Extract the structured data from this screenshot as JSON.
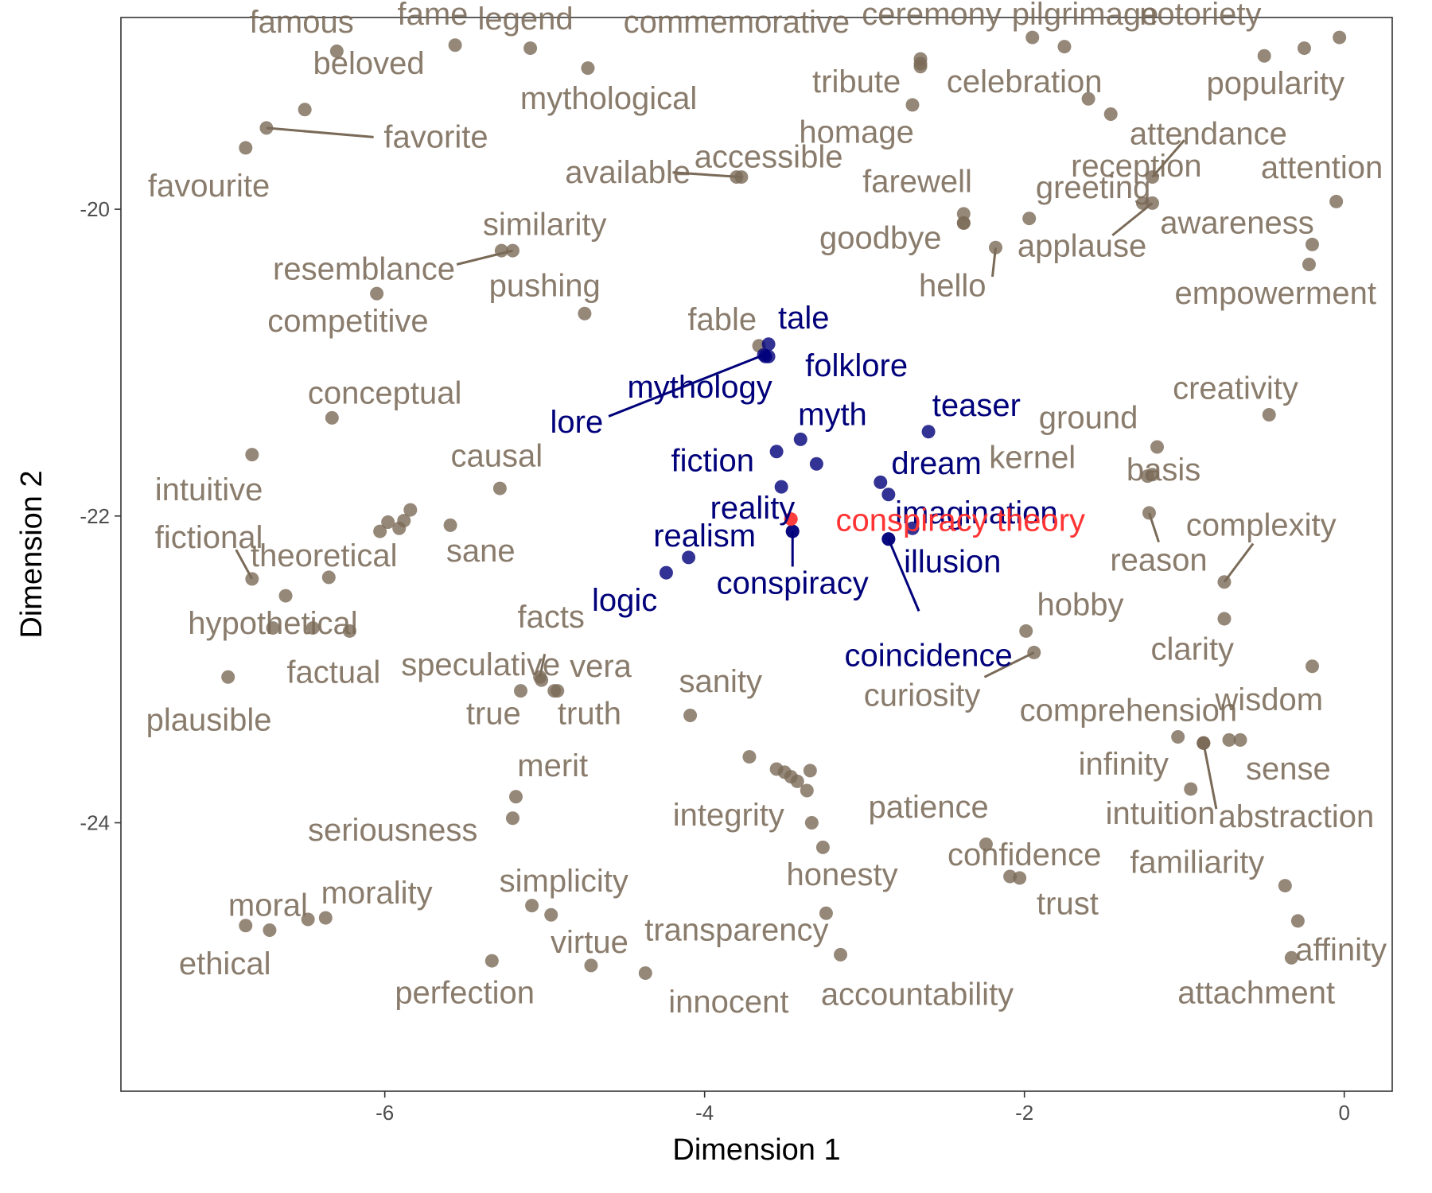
{
  "chart_data": {
    "type": "scatter",
    "title": "",
    "xlabel": "Dimension 1",
    "ylabel": "Dimension 2",
    "xlim": [
      -7.65,
      0.3
    ],
    "ylim": [
      -25.75,
      -18.75
    ],
    "x_ticks": [
      -6,
      -4,
      -2,
      0
    ],
    "y_ticks": [
      -20,
      -22,
      -24
    ],
    "x_tick_labels": [
      "-6",
      "-4",
      "-2",
      "0"
    ],
    "y_tick_labels": [
      "-20",
      "-22",
      "-24"
    ],
    "grid": false,
    "legend": "none",
    "colors": {
      "background": "#7a6a58",
      "related": "#00007a",
      "target": "#ff3333"
    },
    "groups": [
      {
        "name": "background",
        "color": "#7a6a58"
      },
      {
        "name": "related",
        "color": "#00007a"
      },
      {
        "name": "target",
        "color": "#ff3333"
      }
    ],
    "points": [
      {
        "label": "famous",
        "x": -6.3,
        "y": -18.97,
        "group": "background",
        "lx": -6.52,
        "ly": -18.78
      },
      {
        "label": "fame",
        "x": -5.56,
        "y": -18.93,
        "group": "background",
        "lx": -5.7,
        "ly": -18.73
      },
      {
        "label": "legend",
        "x": -5.09,
        "y": -18.95,
        "group": "background",
        "lx": -5.12,
        "ly": -18.76
      },
      {
        "label": "commemorative",
        "x": -2.65,
        "y": -19.05,
        "group": "background",
        "lx": -3.8,
        "ly": -18.78
      },
      {
        "label": "ceremony",
        "x": -2.65,
        "y": -19.02,
        "group": "background",
        "lx": -2.58,
        "ly": -18.73
      },
      {
        "label": "pilgrimage",
        "x": -1.95,
        "y": -18.88,
        "group": "background",
        "lx": -1.62,
        "ly": -18.73
      },
      {
        "label": "notoriety",
        "x": -1.75,
        "y": -18.94,
        "group": "background",
        "lx": -0.9,
        "ly": -18.73
      },
      {
        "label": "",
        "x": -0.25,
        "y": -18.95,
        "group": "background"
      },
      {
        "label": "",
        "x": -0.03,
        "y": -18.88,
        "group": "background"
      },
      {
        "label": "mythological",
        "x": -4.73,
        "y": -19.08,
        "group": "background",
        "lx": -4.6,
        "ly": -19.28
      },
      {
        "label": "tribute",
        "x": -2.65,
        "y": -19.07,
        "group": "background",
        "lx": -3.05,
        "ly": -19.17
      },
      {
        "label": "celebration",
        "x": -1.6,
        "y": -19.28,
        "group": "background",
        "lx": -2.0,
        "ly": -19.17
      },
      {
        "label": "popularity",
        "x": -0.5,
        "y": -19.0,
        "group": "background",
        "lx": -0.43,
        "ly": -19.18
      },
      {
        "label": "beloved",
        "x": -6.5,
        "y": -19.35,
        "group": "background",
        "lx": -6.1,
        "ly": -19.05
      },
      {
        "label": "favorite",
        "x": -6.74,
        "y": -19.47,
        "group": "background",
        "lx": -5.68,
        "ly": -19.53,
        "lineTo": [
          -6.07,
          -19.53
        ]
      },
      {
        "label": "favourite",
        "x": -6.87,
        "y": -19.6,
        "group": "background",
        "lx": -7.1,
        "ly": -19.85
      },
      {
        "label": "homage",
        "x": -2.7,
        "y": -19.32,
        "group": "background",
        "lx": -3.05,
        "ly": -19.5
      },
      {
        "label": "",
        "x": -1.46,
        "y": -19.38,
        "group": "background"
      },
      {
        "label": "attendance",
        "x": -1.2,
        "y": -19.79,
        "group": "background",
        "lx": -0.85,
        "ly": -19.51,
        "lineTo": [
          -1.0,
          -19.55
        ]
      },
      {
        "label": "reception",
        "x": -1.26,
        "y": -19.96,
        "group": "background",
        "lx": -1.3,
        "ly": -19.72
      },
      {
        "label": "accessible",
        "x": -3.8,
        "y": -19.79,
        "group": "background",
        "lx": -3.6,
        "ly": -19.66
      },
      {
        "label": "available",
        "x": -3.77,
        "y": -19.79,
        "group": "background",
        "lx": -4.48,
        "ly": -19.76,
        "lineTo": [
          -4.2,
          -19.76
        ]
      },
      {
        "label": "attention",
        "x": -0.05,
        "y": -19.95,
        "group": "background",
        "lx": -0.14,
        "ly": -19.73
      },
      {
        "label": "farewell",
        "x": -2.38,
        "y": -20.03,
        "group": "background",
        "lx": -2.67,
        "ly": -19.82
      },
      {
        "label": "",
        "x": -2.38,
        "y": -20.09,
        "group": "background"
      },
      {
        "label": "greeting",
        "x": -1.97,
        "y": -20.06,
        "group": "background",
        "lx": -1.57,
        "ly": -19.86
      },
      {
        "label": "similarity",
        "x": -5.27,
        "y": -20.27,
        "group": "background",
        "lx": -5.0,
        "ly": -20.1
      },
      {
        "label": "resemblance",
        "x": -5.2,
        "y": -20.27,
        "group": "background",
        "lx": -6.13,
        "ly": -20.39,
        "lineTo": [
          -5.55,
          -20.36
        ]
      },
      {
        "label": "awareness",
        "x": -0.2,
        "y": -20.23,
        "group": "background",
        "lx": -0.67,
        "ly": -20.09
      },
      {
        "label": "applause",
        "x": -1.2,
        "y": -19.96,
        "group": "background",
        "lx": -1.64,
        "ly": -20.24,
        "lineTo": [
          -1.45,
          -20.17
        ]
      },
      {
        "label": "goodbye",
        "x": -2.38,
        "y": -20.09,
        "group": "background",
        "lx": -2.9,
        "ly": -20.19
      },
      {
        "label": "hello",
        "x": -2.18,
        "y": -20.25,
        "group": "background",
        "lx": -2.45,
        "ly": -20.5,
        "lineTo": [
          -2.2,
          -20.44
        ]
      },
      {
        "label": "empowerment",
        "x": -0.22,
        "y": -20.36,
        "group": "background",
        "lx": -0.43,
        "ly": -20.55
      },
      {
        "label": "competitive",
        "x": -6.05,
        "y": -20.55,
        "group": "background",
        "lx": -6.23,
        "ly": -20.73
      },
      {
        "label": "pushing",
        "x": -4.75,
        "y": -20.68,
        "group": "background",
        "lx": -5.0,
        "ly": -20.5
      },
      {
        "label": "fable",
        "x": -3.66,
        "y": -20.89,
        "group": "background",
        "lx": -3.89,
        "ly": -20.72
      },
      {
        "label": "conceptual",
        "x": -6.33,
        "y": -21.36,
        "group": "background",
        "lx": -6.0,
        "ly": -21.2
      },
      {
        "label": "creativity",
        "x": -0.47,
        "y": -21.34,
        "group": "background",
        "lx": -0.68,
        "ly": -21.17
      },
      {
        "label": "ground",
        "x": -1.17,
        "y": -21.55,
        "group": "background",
        "lx": -1.6,
        "ly": -21.36
      },
      {
        "label": "intuitive",
        "x": -6.83,
        "y": -21.6,
        "group": "background",
        "lx": -7.1,
        "ly": -21.83
      },
      {
        "label": "causal",
        "x": -5.28,
        "y": -21.82,
        "group": "background",
        "lx": -5.3,
        "ly": -21.61
      },
      {
        "label": "kernel",
        "x": -1.23,
        "y": -21.74,
        "group": "background",
        "lx": -1.95,
        "ly": -21.62
      },
      {
        "label": "basis",
        "x": -1.2,
        "y": -21.73,
        "group": "background",
        "lx": -1.13,
        "ly": -21.7
      },
      {
        "label": "fictional",
        "x": -6.83,
        "y": -22.41,
        "group": "background",
        "lx": -7.1,
        "ly": -22.14,
        "lineTo": [
          -6.93,
          -22.22
        ]
      },
      {
        "label": "",
        "x": -6.03,
        "y": -22.1,
        "group": "background"
      },
      {
        "label": "",
        "x": -5.98,
        "y": -22.04,
        "group": "background"
      },
      {
        "label": "",
        "x": -5.91,
        "y": -22.08,
        "group": "background"
      },
      {
        "label": "",
        "x": -5.88,
        "y": -22.03,
        "group": "background"
      },
      {
        "label": "",
        "x": -5.84,
        "y": -21.96,
        "group": "background"
      },
      {
        "label": "theoretical",
        "x": -6.35,
        "y": -22.4,
        "group": "background",
        "lx": -6.38,
        "ly": -22.26
      },
      {
        "label": "sane",
        "x": -5.59,
        "y": -22.06,
        "group": "background",
        "lx": -5.4,
        "ly": -22.23
      },
      {
        "label": "complexity",
        "x": -0.75,
        "y": -22.43,
        "group": "background",
        "lx": -0.52,
        "ly": -22.06,
        "lineTo": [
          -0.57,
          -22.18
        ]
      },
      {
        "label": "reason",
        "x": -1.22,
        "y": -21.98,
        "group": "background",
        "lx": -1.16,
        "ly": -22.29,
        "lineTo": [
          -1.16,
          -22.17
        ]
      },
      {
        "label": "",
        "x": -6.62,
        "y": -22.52,
        "group": "background"
      },
      {
        "label": "hypothetical",
        "x": -6.45,
        "y": -22.73,
        "group": "background",
        "lx": -6.7,
        "ly": -22.7
      },
      {
        "label": "",
        "x": -6.22,
        "y": -22.75,
        "group": "background"
      },
      {
        "label": "facts",
        "x": -5.03,
        "y": -23.05,
        "group": "background",
        "lx": -4.96,
        "ly": -22.66,
        "lineTo": [
          -5.0,
          -22.9
        ]
      },
      {
        "label": "hobby",
        "x": -1.99,
        "y": -22.75,
        "group": "background",
        "lx": -1.65,
        "ly": -22.58
      },
      {
        "label": "clarity",
        "x": -0.75,
        "y": -22.67,
        "group": "background",
        "lx": -0.95,
        "ly": -22.87
      },
      {
        "label": "speculative",
        "x": -5.02,
        "y": -23.07,
        "group": "background",
        "lx": -5.4,
        "ly": -22.97
      },
      {
        "label": "factual",
        "x": -6.7,
        "y": -22.73,
        "group": "background",
        "lx": -6.32,
        "ly": -23.02
      },
      {
        "label": "vera",
        "x": -4.92,
        "y": -23.14,
        "group": "background",
        "lx": -4.65,
        "ly": -22.98
      },
      {
        "label": "curiosity",
        "x": -1.94,
        "y": -22.89,
        "group": "background",
        "lx": -2.64,
        "ly": -23.17,
        "lineTo": [
          -2.25,
          -23.05
        ]
      },
      {
        "label": "plausible",
        "x": -6.98,
        "y": -23.05,
        "group": "background",
        "lx": -7.1,
        "ly": -23.33
      },
      {
        "label": "true",
        "x": -5.15,
        "y": -23.14,
        "group": "background",
        "lx": -5.32,
        "ly": -23.29
      },
      {
        "label": "truth",
        "x": -4.94,
        "y": -23.14,
        "group": "background",
        "lx": -4.72,
        "ly": -23.29
      },
      {
        "label": "sanity",
        "x": -4.09,
        "y": -23.3,
        "group": "background",
        "lx": -3.9,
        "ly": -23.08
      },
      {
        "label": "wisdom",
        "x": -0.2,
        "y": -22.98,
        "group": "background",
        "lx": -0.47,
        "ly": -23.2
      },
      {
        "label": "comprehension",
        "x": -1.04,
        "y": -23.44,
        "group": "background",
        "lx": -1.35,
        "ly": -23.27
      },
      {
        "label": "",
        "x": -0.72,
        "y": -23.46,
        "group": "background"
      },
      {
        "label": "",
        "x": -0.65,
        "y": -23.46,
        "group": "background"
      },
      {
        "label": "infinity",
        "x": -0.96,
        "y": -23.78,
        "group": "background",
        "lx": -1.38,
        "ly": -23.62
      },
      {
        "label": "sense",
        "x": -0.88,
        "y": -23.48,
        "group": "background",
        "lx": -0.35,
        "ly": -23.65
      },
      {
        "label": "intuition",
        "x": -0.88,
        "y": -23.48,
        "group": "background",
        "lx": -1.15,
        "ly": -23.94
      },
      {
        "label": "abstraction",
        "x": -0.88,
        "y": -23.48,
        "group": "background",
        "lx": -0.3,
        "ly": -23.96,
        "lineTo": [
          -0.8,
          -23.91
        ]
      },
      {
        "label": "merit",
        "x": -5.18,
        "y": -23.83,
        "group": "background",
        "lx": -4.95,
        "ly": -23.63
      },
      {
        "label": "",
        "x": -3.72,
        "y": -23.57,
        "group": "background"
      },
      {
        "label": "",
        "x": -3.55,
        "y": -23.65,
        "group": "background"
      },
      {
        "label": "",
        "x": -3.5,
        "y": -23.67,
        "group": "background"
      },
      {
        "label": "",
        "x": -3.46,
        "y": -23.7,
        "group": "background"
      },
      {
        "label": "",
        "x": -3.42,
        "y": -23.73,
        "group": "background"
      },
      {
        "label": "",
        "x": -3.36,
        "y": -23.79,
        "group": "background"
      },
      {
        "label": "",
        "x": -3.34,
        "y": -23.66,
        "group": "background"
      },
      {
        "label": "integrity",
        "x": -3.33,
        "y": -24.0,
        "group": "background",
        "lx": -3.85,
        "ly": -23.95
      },
      {
        "label": "seriousness",
        "x": -5.2,
        "y": -23.97,
        "group": "background",
        "lx": -5.95,
        "ly": -24.05
      },
      {
        "label": "patience",
        "x": -2.24,
        "y": -24.14,
        "group": "background",
        "lx": -2.6,
        "ly": -23.9
      },
      {
        "label": "honesty",
        "x": -3.26,
        "y": -24.16,
        "group": "background",
        "lx": -3.14,
        "ly": -24.34
      },
      {
        "label": "confidence",
        "x": -2.09,
        "y": -24.35,
        "group": "background",
        "lx": -2.0,
        "ly": -24.21
      },
      {
        "label": "trust",
        "x": -2.03,
        "y": -24.36,
        "group": "background",
        "lx": -1.73,
        "ly": -24.53
      },
      {
        "label": "familiarity",
        "x": -0.37,
        "y": -24.41,
        "group": "background",
        "lx": -0.92,
        "ly": -24.26
      },
      {
        "label": "simplicity",
        "x": -5.08,
        "y": -24.54,
        "group": "background",
        "lx": -4.88,
        "ly": -24.38
      },
      {
        "label": "",
        "x": -4.96,
        "y": -24.6,
        "group": "background"
      },
      {
        "label": "moral",
        "x": -6.72,
        "y": -24.7,
        "group": "background",
        "lx": -6.73,
        "ly": -24.54
      },
      {
        "label": "morality",
        "x": -6.48,
        "y": -24.63,
        "group": "background",
        "lx": -6.05,
        "ly": -24.46
      },
      {
        "label": "",
        "x": -6.37,
        "y": -24.62,
        "group": "background"
      },
      {
        "label": "transparency",
        "x": -3.24,
        "y": -24.59,
        "group": "background",
        "lx": -3.8,
        "ly": -24.7
      },
      {
        "label": "affinity",
        "x": -0.29,
        "y": -24.64,
        "group": "background",
        "lx": -0.02,
        "ly": -24.83
      },
      {
        "label": "ethical",
        "x": -6.87,
        "y": -24.67,
        "group": "background",
        "lx": -7.0,
        "ly": -24.92
      },
      {
        "label": "virtue",
        "x": -4.71,
        "y": -24.93,
        "group": "background",
        "lx": -4.72,
        "ly": -24.78
      },
      {
        "label": "accountability",
        "x": -3.15,
        "y": -24.86,
        "group": "background",
        "lx": -2.67,
        "ly": -25.12
      },
      {
        "label": "perfection",
        "x": -5.33,
        "y": -24.9,
        "group": "background",
        "lx": -5.5,
        "ly": -25.11
      },
      {
        "label": "innocent",
        "x": -4.37,
        "y": -24.98,
        "group": "background",
        "lx": -3.85,
        "ly": -25.17
      },
      {
        "label": "attachment",
        "x": -0.33,
        "y": -24.88,
        "group": "background",
        "lx": -0.55,
        "ly": -25.11
      },
      {
        "label": "tale",
        "x": -3.6,
        "y": -20.88,
        "group": "related",
        "lx": -3.38,
        "ly": -20.71
      },
      {
        "label": "folklore",
        "x": -3.6,
        "y": -20.96,
        "group": "related",
        "lx": -3.05,
        "ly": -21.02
      },
      {
        "label": "mythology",
        "x": -3.62,
        "y": -20.96,
        "group": "related",
        "lx": -4.03,
        "ly": -21.16
      },
      {
        "label": "lore",
        "x": -3.63,
        "y": -20.95,
        "group": "related",
        "lx": -4.8,
        "ly": -21.39,
        "lineTo": [
          -4.6,
          -21.35
        ]
      },
      {
        "label": "myth",
        "x": -3.4,
        "y": -21.5,
        "group": "related",
        "lx": -3.2,
        "ly": -21.34
      },
      {
        "label": "teaser",
        "x": -2.6,
        "y": -21.45,
        "group": "related",
        "lx": -2.3,
        "ly": -21.28
      },
      {
        "label": "fiction",
        "x": -3.55,
        "y": -21.58,
        "group": "related",
        "lx": -3.95,
        "ly": -21.64
      },
      {
        "label": "",
        "x": -3.3,
        "y": -21.66,
        "group": "related"
      },
      {
        "label": "dream",
        "x": -2.9,
        "y": -21.78,
        "group": "related",
        "lx": -2.55,
        "ly": -21.66
      },
      {
        "label": "",
        "x": -2.85,
        "y": -21.86,
        "group": "related"
      },
      {
        "label": "reality",
        "x": -3.52,
        "y": -21.81,
        "group": "related",
        "lx": -3.7,
        "ly": -21.95
      },
      {
        "label": "imagination",
        "x": -2.7,
        "y": -22.08,
        "group": "related",
        "lx": -2.3,
        "ly": -21.98
      },
      {
        "label": "realism",
        "x": -4.1,
        "y": -22.27,
        "group": "related",
        "lx": -4.0,
        "ly": -22.13
      },
      {
        "label": "",
        "x": -3.45,
        "y": -22.1,
        "group": "related"
      },
      {
        "label": "illusion",
        "x": -2.85,
        "y": -22.15,
        "group": "related",
        "lx": -2.45,
        "ly": -22.3
      },
      {
        "label": "logic",
        "x": -4.24,
        "y": -22.37,
        "group": "related",
        "lx": -4.5,
        "ly": -22.55
      },
      {
        "label": "conspiracy",
        "x": -3.45,
        "y": -22.1,
        "group": "related",
        "lx": -3.45,
        "ly": -22.44,
        "lineTo": [
          -3.45,
          -22.33
        ]
      },
      {
        "label": "coincidence",
        "x": -2.85,
        "y": -22.15,
        "group": "related",
        "lx": -2.6,
        "ly": -22.91,
        "lineTo": [
          -2.66,
          -22.62
        ]
      },
      {
        "label": "conspiracy theory",
        "x": -3.46,
        "y": -22.02,
        "group": "target",
        "lx": -2.4,
        "ly": -22.03
      }
    ]
  }
}
